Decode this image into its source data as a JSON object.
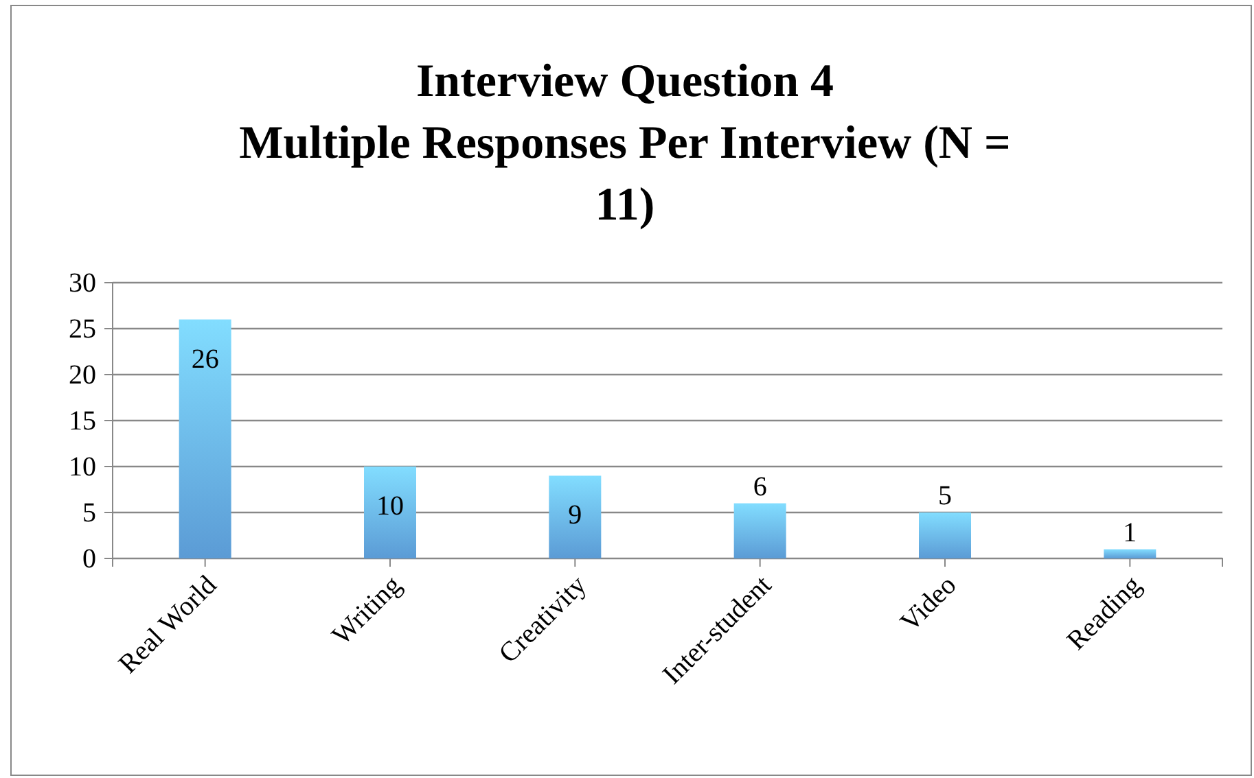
{
  "chart_data": {
    "type": "bar",
    "title": "Interview Question 4\nMultiple Responses Per Interview (N = 11)",
    "categories": [
      "Real World",
      "Writing",
      "Creativity",
      "Inter-student",
      "Video",
      "Reading"
    ],
    "values": [
      26,
      10,
      9,
      6,
      5,
      1
    ],
    "color": "#5b9bd5",
    "ylim": [
      0,
      30
    ],
    "yticks": [
      0,
      5,
      10,
      15,
      20,
      25,
      30
    ],
    "grid": "y",
    "data_labels": true
  }
}
